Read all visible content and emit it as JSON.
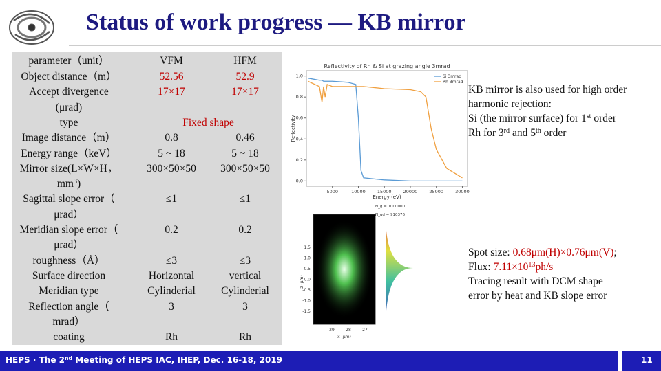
{
  "header": {
    "title": "Status of work progress — KB mirror"
  },
  "table": {
    "header": [
      "parameter（unit）",
      "VFM",
      "HFM"
    ],
    "rows": [
      {
        "param": [
          "Object distance（m）"
        ],
        "vfm": "52.56",
        "hfm": "52.9",
        "highlight": true
      },
      {
        "param": [
          "Accept divergence",
          "(μrad)"
        ],
        "vfm": "17×17",
        "hfm": "17×17",
        "highlight": true
      },
      {
        "param": [
          "type"
        ],
        "both": "Fixed shape",
        "highlight": true
      },
      {
        "param": [
          "Image distance（m）"
        ],
        "vfm": "0.8",
        "hfm": "0.46"
      },
      {
        "param": [
          "Energy range（keV）"
        ],
        "vfm": "5 ~ 18",
        "hfm": "5 ~ 18"
      },
      {
        "param": [
          "Mirror size(L×W×H，",
          [
            "mm",
            {
              "text": "3",
              "sup": true
            },
            ")"
          ]
        ],
        "vfm": "300×50×50",
        "hfm": "300×50×50"
      },
      {
        "param": [
          "Sagittal slope error（",
          "μrad）"
        ],
        "vfm": "≤1",
        "hfm": "≤1"
      },
      {
        "param": [
          "Meridian slope error（",
          "μrad）"
        ],
        "vfm": "0.2",
        "hfm": "0.2"
      },
      {
        "param": [
          "roughness（Å）"
        ],
        "vfm": "≤3",
        "hfm": "≤3"
      },
      {
        "param": [
          "Surface direction"
        ],
        "vfm": "Horizontal",
        "hfm": "vertical"
      },
      {
        "param": [
          "Meridian type"
        ],
        "vfm": "Cylinderial",
        "hfm": "Cylinderial"
      },
      {
        "param": [
          "Reflection angle（",
          "mrad）"
        ],
        "vfm": "3",
        "hfm": "3"
      },
      {
        "param": [
          "coating"
        ],
        "vfm": "Rh",
        "hfm": "Rh"
      }
    ]
  },
  "notes": [
    [
      "KB mirror is also used for high order",
      "harmonic rejection:",
      [
        "Si (the mirror surface) for 1",
        {
          "text": "st",
          "sup": true
        },
        " order"
      ],
      [
        "Rh for 3",
        {
          "text": "rd",
          "sup": true
        },
        " and 5",
        {
          "text": "th",
          "sup": true
        },
        " order"
      ]
    ],
    [
      [
        "Spot size: ",
        {
          "text": "0.68μm(H)×0.76μm(V)",
          "red": true
        },
        ";"
      ],
      [
        "Flux: ",
        {
          "text": "7.11×10",
          "red": true
        },
        {
          "text": "13",
          "sup": true,
          "red": true
        },
        {
          "text": "ph/s",
          "red": true
        }
      ],
      "Tracing result with DCM shape",
      "error by heat and KB slope error"
    ]
  ],
  "chart_data": {
    "type": "line",
    "title": "Reflectivity of Rh & Si at grazing angle 3mrad",
    "xlabel": "Energy (eV)",
    "ylabel": "Reflectivity",
    "x": [
      300,
      2500,
      3000,
      3300,
      3600,
      4000,
      5000,
      8000,
      9500,
      10000,
      10500,
      11000,
      15000,
      20000,
      22000,
      23000,
      24000,
      25000,
      27000,
      30000
    ],
    "series": [
      {
        "name": "Si 3mrad",
        "color": "#5b9bd5",
        "values": [
          0.98,
          0.96,
          0.96,
          0.95,
          0.95,
          0.95,
          0.95,
          0.94,
          0.92,
          0.6,
          0.1,
          0.03,
          0.01,
          0,
          0,
          0,
          0,
          0,
          0,
          0
        ]
      },
      {
        "name": "Rh 3mrad",
        "color": "#f0a040",
        "values": [
          0.95,
          0.9,
          0.75,
          0.9,
          0.8,
          0.92,
          0.9,
          0.9,
          0.9,
          0.9,
          0.9,
          0.9,
          0.88,
          0.87,
          0.85,
          0.8,
          0.5,
          0.3,
          0.12,
          0.03
        ]
      }
    ],
    "xlim": [
      0,
      31000
    ],
    "ylim": [
      -0.05,
      1.05
    ],
    "xticks": [
      5000,
      10000,
      15000,
      20000,
      25000,
      30000
    ],
    "yticks": [
      {
        "value": 0,
        "label": "0.0"
      },
      0.2,
      0.4,
      0.6,
      0.8,
      {
        "value": 1,
        "label": "1.0"
      }
    ],
    "legend": "upper right"
  },
  "spot_figure": {
    "xlabel": "x (μm)",
    "ylabel": "z (μm)",
    "yticks": [
      "1.5",
      "1.0",
      "0.5",
      "0.0",
      "-0.5",
      "-1.0",
      "-1.5"
    ],
    "xticks": [
      "29",
      "28",
      "27"
    ],
    "stats": [
      "N_g = 1000000",
      "N_gd = 910376"
    ]
  },
  "footer": {
    "text": [
      "HEPS · The 2",
      {
        "text": "nd",
        "sup": true
      },
      " Meeting of HEPS IAC, IHEP, Dec. 16-18, 2019"
    ],
    "page": "11"
  }
}
